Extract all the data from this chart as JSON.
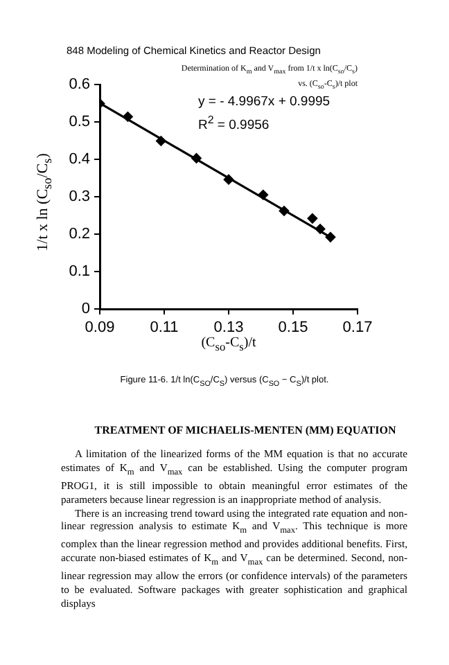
{
  "chart_data": {
    "type": "scatter",
    "title": "Determination of K$_{m}$ and V$_{max}$ from 1/t  x  ln(C$_{so}$/C$_{s}$) vs. (C$_{so}$-C$_{s}$)/t  plot",
    "xlabel": "(C$_{so}$-C$_{s}$)/t",
    "ylabel": "1/t  x  ln (C$_{so}$/C$_{s}$)",
    "xlim": [
      0.09,
      0.17
    ],
    "xticks": [
      0.09,
      0.11,
      0.13,
      0.15,
      0.17
    ],
    "ylim": [
      0,
      0.6
    ],
    "yticks": [
      0,
      0.1,
      0.2,
      0.3,
      0.4,
      0.5,
      0.6
    ],
    "marker": "diamond",
    "legend": false,
    "series": [
      {
        "type": "scatter",
        "color": "#000000",
        "x": [
          0.09,
          0.0987,
          0.109,
          0.12,
          0.13,
          0.1407,
          0.1472,
          0.156,
          0.1584,
          0.1616
        ],
        "values": [
          0.549,
          0.514,
          0.449,
          0.403,
          0.346,
          0.305,
          0.262,
          0.242,
          0.214,
          0.192
        ]
      },
      {
        "type": "line",
        "color": "#000000",
        "marker": "none",
        "x": [
          0.09,
          0.1616
        ],
        "values": [
          0.55,
          0.192
        ]
      }
    ],
    "annotations": [
      "848    Modeling of Chemical Kinetics and Reactor Design",
      "y = - 4.9967x + 0.9995",
      "R$^{2}$ = 0.9956",
      "Figure 11-6. 1/t ln(C$_{SO}$/C$_{S}$) versus (C$_{SO}$ − C$_{S}$)/t plot.",
      "TREATMENT OF MICHAELIS-MENTEN (MM) EQUATION",
      "A limitation of the linearized forms of the MM equation is that no accurate estimates of K$_{m}$ and V$_{max}$ can be established. Using the computer program PROG1, it is still impossible to obtain meaningful error estimates of the parameters because linear regression is an inappropriate method of analysis.",
      "There is an increasing trend toward using the integrated rate equation and non-linear regression analysis to estimate K$_{m}$ and V$_{max}$. This technique is more complex than the linear regression method and provides additional benefits. First, accurate non-biased estimates of K$_{m}$ and V$_{max}$ can be determined. Second, non-linear regression may allow the errors (or confidence intervals) of the parameters to be evaluated. Software packages with greater sophistication and graphical displays"
    ]
  }
}
